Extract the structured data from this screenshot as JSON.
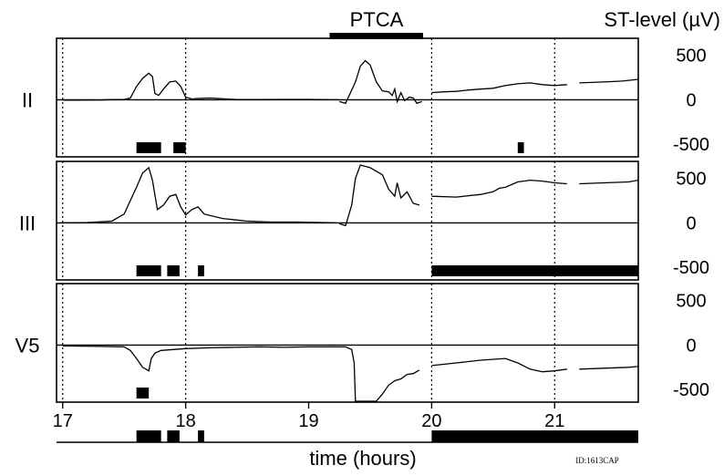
{
  "chart_data": {
    "type": "line",
    "title": "",
    "xlabel": "time (hours)",
    "ylabel": "ST-level (µV)",
    "xlim": [
      16.95,
      21.68
    ],
    "ylim": [
      -600,
      650
    ],
    "x_ticks": [
      "17",
      "18",
      "19",
      "20",
      "21"
    ],
    "y_ticks": [
      "500",
      "0",
      "-500"
    ],
    "dotted_gridlines_x": [
      17,
      18,
      21
    ],
    "ptca": {
      "label": "PTCA",
      "start": 19.17,
      "end": 19.93
    },
    "note": "ID:1613CAP",
    "panels": [
      {
        "lead": "II",
        "ylim": [
          -600,
          650
        ],
        "events": [
          [
            17.6,
            17.8
          ],
          [
            17.9,
            18.0
          ],
          [
            20.7,
            20.75
          ]
        ],
        "segments": [
          [
            [
              17.0,
              -5
            ],
            [
              17.3,
              -3
            ],
            [
              17.5,
              5
            ],
            [
              17.55,
              20
            ],
            [
              17.6,
              150
            ],
            [
              17.65,
              240
            ],
            [
              17.7,
              300
            ],
            [
              17.73,
              260
            ],
            [
              17.75,
              70
            ],
            [
              17.78,
              50
            ],
            [
              17.82,
              120
            ],
            [
              17.87,
              200
            ],
            [
              17.92,
              210
            ],
            [
              17.96,
              150
            ],
            [
              18.0,
              30
            ],
            [
              18.05,
              10
            ],
            [
              18.1,
              15
            ],
            [
              18.2,
              20
            ],
            [
              18.4,
              5
            ],
            [
              18.6,
              3
            ],
            [
              18.8,
              5
            ],
            [
              19.0,
              5
            ],
            [
              19.2,
              0
            ],
            [
              19.25,
              0
            ]
          ],
          [
            [
              19.25,
              -20
            ],
            [
              19.3,
              -40
            ],
            [
              19.33,
              50
            ],
            [
              19.38,
              200
            ],
            [
              19.42,
              380
            ],
            [
              19.46,
              440
            ],
            [
              19.5,
              390
            ],
            [
              19.55,
              200
            ],
            [
              19.6,
              100
            ],
            [
              19.65,
              90
            ],
            [
              19.68,
              50
            ],
            [
              19.7,
              120
            ],
            [
              19.72,
              -20
            ],
            [
              19.75,
              80
            ],
            [
              19.78,
              -10
            ],
            [
              19.82,
              30
            ],
            [
              19.85,
              20
            ],
            [
              19.88,
              -40
            ],
            [
              19.92,
              -20
            ]
          ],
          [
            [
              20.0,
              80
            ],
            [
              20.1,
              90
            ],
            [
              20.2,
              95
            ],
            [
              20.3,
              110
            ],
            [
              20.4,
              120
            ],
            [
              20.5,
              130
            ],
            [
              20.6,
              160
            ],
            [
              20.7,
              180
            ],
            [
              20.8,
              190
            ],
            [
              20.9,
              170
            ],
            [
              21.0,
              160
            ],
            [
              21.1,
              170
            ]
          ],
          [
            [
              21.2,
              190
            ],
            [
              21.4,
              200
            ],
            [
              21.55,
              210
            ],
            [
              21.68,
              230
            ]
          ]
        ]
      },
      {
        "lead": "III",
        "ylim": [
          -600,
          650
        ],
        "events": [
          [
            17.6,
            17.8
          ],
          [
            17.85,
            17.95
          ],
          [
            18.1,
            18.15
          ],
          [
            20.0,
            21.68
          ]
        ],
        "segments": [
          [
            [
              17.0,
              0
            ],
            [
              17.2,
              5
            ],
            [
              17.4,
              20
            ],
            [
              17.5,
              100
            ],
            [
              17.55,
              250
            ],
            [
              17.6,
              400
            ],
            [
              17.65,
              560
            ],
            [
              17.7,
              620
            ],
            [
              17.73,
              480
            ],
            [
              17.77,
              150
            ],
            [
              17.82,
              200
            ],
            [
              17.87,
              300
            ],
            [
              17.92,
              320
            ],
            [
              17.96,
              180
            ],
            [
              18.0,
              90
            ],
            [
              18.05,
              150
            ],
            [
              18.1,
              180
            ],
            [
              18.15,
              100
            ],
            [
              18.3,
              50
            ],
            [
              18.5,
              20
            ],
            [
              18.7,
              10
            ],
            [
              18.9,
              10
            ],
            [
              19.1,
              5
            ],
            [
              19.22,
              0
            ]
          ],
          [
            [
              19.25,
              -10
            ],
            [
              19.3,
              -30
            ],
            [
              19.35,
              200
            ],
            [
              19.38,
              500
            ],
            [
              19.42,
              650
            ],
            [
              19.5,
              620
            ],
            [
              19.6,
              540
            ],
            [
              19.65,
              380
            ],
            [
              19.7,
              300
            ],
            [
              19.72,
              450
            ],
            [
              19.75,
              280
            ],
            [
              19.8,
              350
            ],
            [
              19.85,
              220
            ],
            [
              19.9,
              200
            ]
          ],
          [
            [
              20.0,
              300
            ],
            [
              20.2,
              290
            ],
            [
              20.4,
              320
            ],
            [
              20.5,
              350
            ],
            [
              20.55,
              390
            ],
            [
              20.6,
              400
            ],
            [
              20.7,
              460
            ],
            [
              20.8,
              480
            ],
            [
              20.9,
              470
            ],
            [
              21.0,
              450
            ],
            [
              21.1,
              440
            ]
          ],
          [
            [
              21.2,
              440
            ],
            [
              21.4,
              450
            ],
            [
              21.6,
              460
            ],
            [
              21.68,
              480
            ]
          ]
        ]
      },
      {
        "lead": "V5",
        "ylim": [
          -600,
          650
        ],
        "events": [
          [
            17.6,
            17.7
          ]
        ],
        "segments": [
          [
            [
              17.0,
              -10
            ],
            [
              17.3,
              -15
            ],
            [
              17.5,
              -20
            ],
            [
              17.55,
              -60
            ],
            [
              17.6,
              -150
            ],
            [
              17.65,
              -250
            ],
            [
              17.7,
              -290
            ],
            [
              17.72,
              -150
            ],
            [
              17.75,
              -90
            ],
            [
              17.8,
              -60
            ],
            [
              17.9,
              -50
            ],
            [
              18.0,
              -40
            ],
            [
              18.2,
              -30
            ],
            [
              18.4,
              -25
            ],
            [
              18.6,
              -20
            ],
            [
              18.8,
              -25
            ],
            [
              19.0,
              -20
            ],
            [
              19.17,
              -20
            ]
          ],
          [
            [
              19.17,
              -20
            ],
            [
              19.3,
              -20
            ],
            [
              19.35,
              -50
            ],
            [
              19.37,
              -200
            ],
            [
              19.38,
              -640
            ],
            [
              19.55,
              -640
            ],
            [
              19.6,
              -550
            ],
            [
              19.65,
              -450
            ],
            [
              19.7,
              -400
            ],
            [
              19.75,
              -380
            ],
            [
              19.8,
              -330
            ],
            [
              19.85,
              -320
            ],
            [
              19.9,
              -280
            ]
          ],
          [
            [
              20.0,
              -230
            ],
            [
              20.2,
              -200
            ],
            [
              20.4,
              -170
            ],
            [
              20.6,
              -150
            ],
            [
              20.7,
              -200
            ],
            [
              20.8,
              -270
            ],
            [
              20.9,
              -300
            ],
            [
              21.0,
              -290
            ],
            [
              21.1,
              -270
            ]
          ],
          [
            [
              21.2,
              -270
            ],
            [
              21.4,
              -260
            ],
            [
              21.6,
              -250
            ],
            [
              21.68,
              -240
            ]
          ]
        ]
      }
    ],
    "bottom_events": [
      [
        17.6,
        17.8
      ],
      [
        17.85,
        17.95
      ],
      [
        18.1,
        18.15
      ],
      [
        20.0,
        21.68
      ]
    ]
  }
}
